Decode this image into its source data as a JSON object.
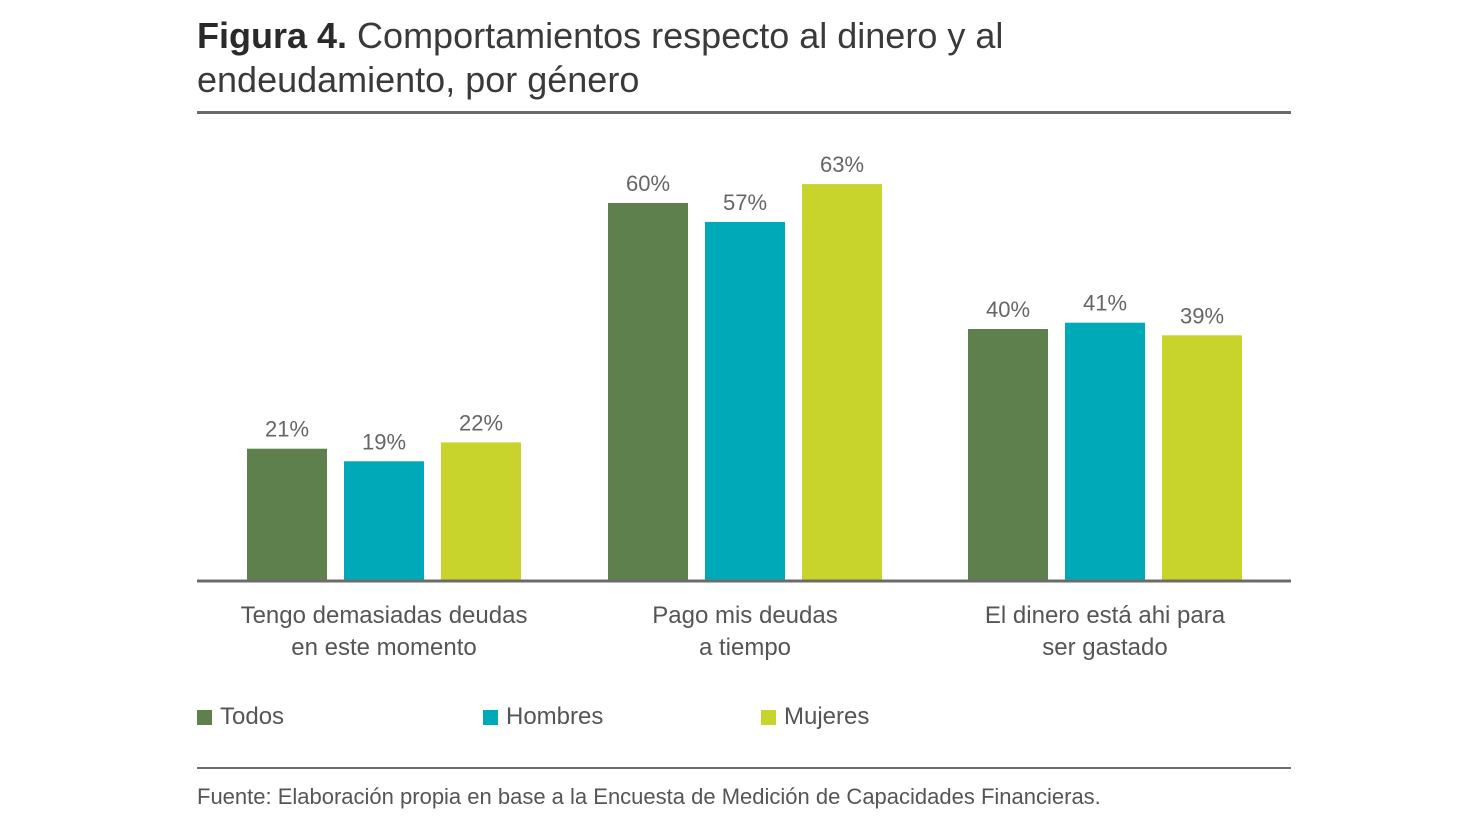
{
  "title": {
    "figure_label": "Figura 4.",
    "text": "Comportamientos respecto al dinero y al endeudamiento, por género"
  },
  "chart_data": {
    "type": "bar",
    "categories": [
      [
        "Tengo demasiadas deudas",
        "en este momento"
      ],
      [
        "Pago mis deudas",
        "a tiempo"
      ],
      [
        "El dinero está ahi para",
        "ser gastado"
      ]
    ],
    "series": [
      {
        "name": "Todos",
        "color": "#5e804d",
        "values": [
          21,
          60,
          40
        ],
        "labels": [
          "21%",
          "60%",
          "40%"
        ]
      },
      {
        "name": "Hombres",
        "color": "#00a9b7",
        "values": [
          19,
          57,
          41
        ],
        "labels": [
          "19%",
          "57%",
          "41%"
        ]
      },
      {
        "name": "Mujeres",
        "color": "#c8d42c",
        "values": [
          22,
          63,
          39
        ],
        "labels": [
          "22%",
          "63%",
          "39%"
        ]
      }
    ],
    "ylim": [
      0,
      63
    ],
    "grid": false,
    "legend_position": "bottom-left"
  },
  "legend": [
    {
      "name": "Todos",
      "color": "#5e804d"
    },
    {
      "name": "Hombres",
      "color": "#00a9b7"
    },
    {
      "name": "Mujeres",
      "color": "#c8d42c"
    }
  ],
  "source": "Fuente: Elaboración propia en base a la Encuesta de Medición de Capacidades Financieras."
}
